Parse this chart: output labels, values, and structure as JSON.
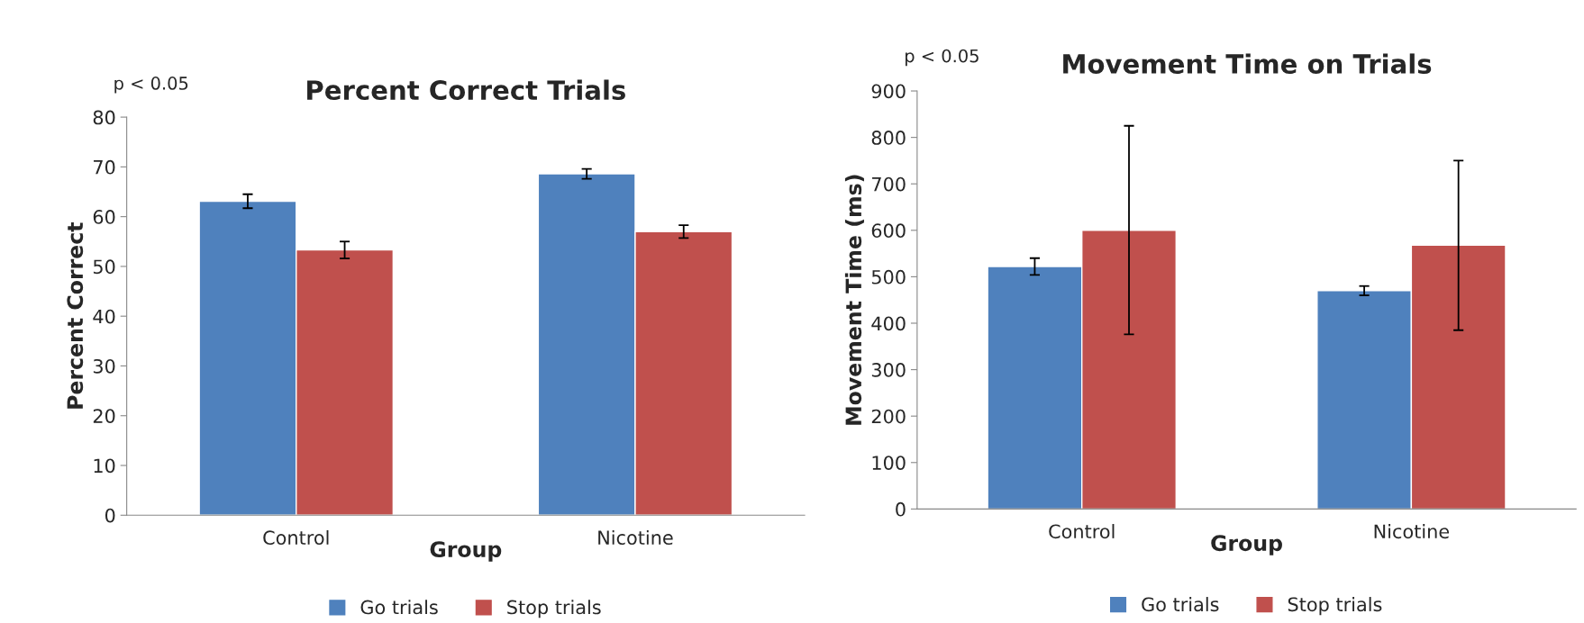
{
  "chart_data": [
    {
      "type": "bar",
      "title": "Percent Correct Trials",
      "xlabel": "Group",
      "ylabel": "Percent Correct",
      "categories": [
        "Control",
        "Nicotine"
      ],
      "series": [
        {
          "name": "Go trials",
          "color": "#4f81bd",
          "values": [
            63.1,
            68.6
          ],
          "errors": [
            1.4,
            1.0
          ]
        },
        {
          "name": "Stop trials",
          "color": "#c0504d",
          "values": [
            53.3,
            57.0
          ],
          "errors": [
            1.7,
            1.3
          ]
        }
      ],
      "ylim": [
        0,
        80
      ],
      "yticks": [
        0,
        10,
        20,
        30,
        40,
        50,
        60,
        70,
        80
      ],
      "grid": false,
      "legend": "bottom",
      "annotations": [
        "p < 0.05"
      ]
    },
    {
      "type": "bar",
      "title": "Movement Time on Trials",
      "xlabel": "Group",
      "ylabel": "Movement Time (ms)",
      "categories": [
        "Control",
        "Nicotine"
      ],
      "series": [
        {
          "name": "Go trials",
          "color": "#4f81bd",
          "values": [
            522,
            470
          ],
          "errors": [
            18,
            10
          ]
        },
        {
          "name": "Stop trials",
          "color": "#c0504d",
          "values": [
            600,
            568
          ],
          "errors": [
            [
              376,
              825
            ],
            [
              385,
              750
            ]
          ]
        }
      ],
      "ylim": [
        0,
        900
      ],
      "yticks": [
        0,
        100,
        200,
        300,
        400,
        500,
        600,
        700,
        800,
        900
      ],
      "grid": false,
      "legend": "bottom",
      "annotations": [
        "p < 0.05"
      ]
    }
  ]
}
